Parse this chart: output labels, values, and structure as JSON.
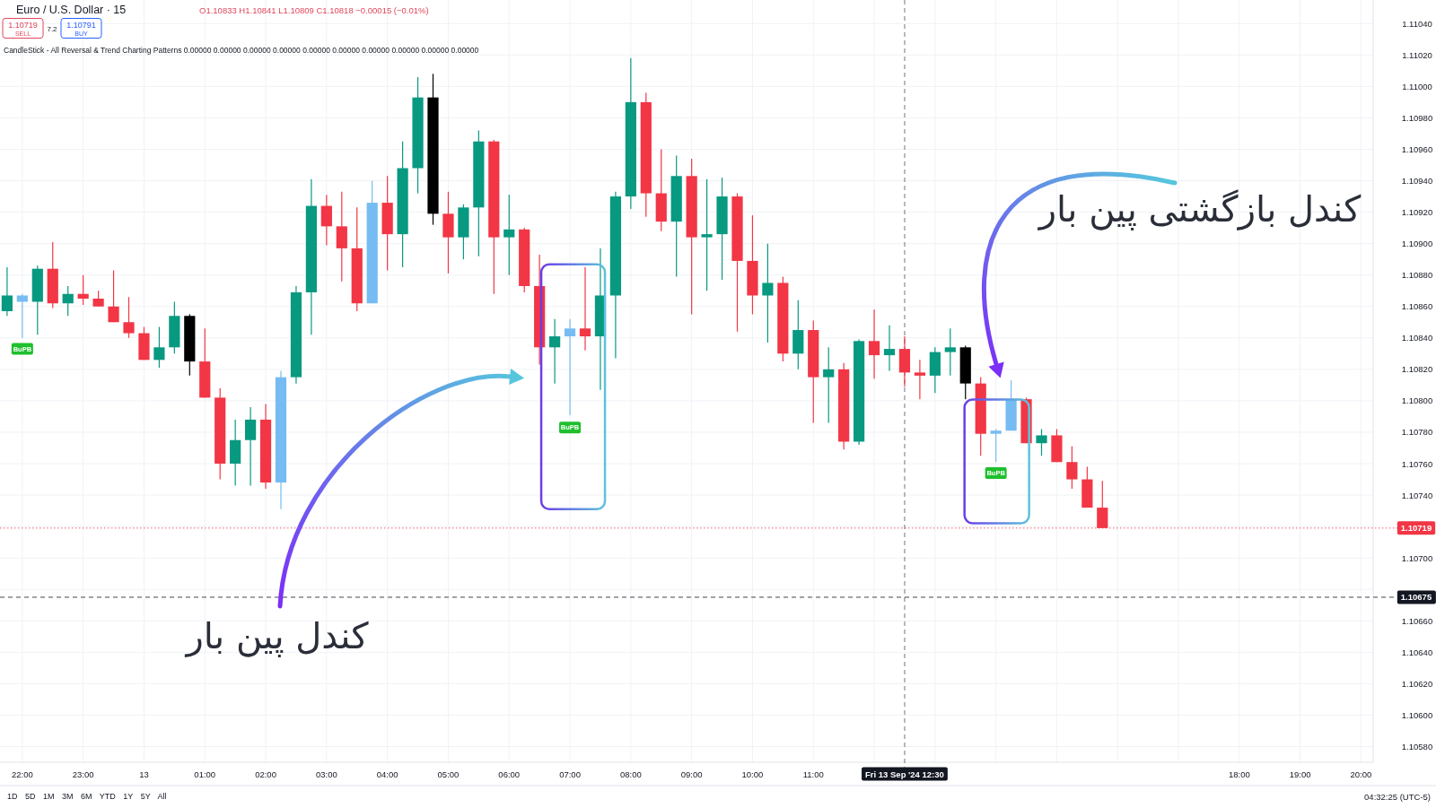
{
  "chart_data": {
    "type": "candlestick",
    "title": "Euro / U.S. Dollar · 15",
    "subtitle": "O1.10833 H1.10841 L1.10809 C1.10818 −0.00015 (−0.01%)",
    "x": [
      "2024-09-12T21:45",
      "2024-09-12T22:00",
      "2024-09-12T22:15",
      "2024-09-12T22:30",
      "2024-09-12T22:45",
      "2024-09-12T23:00",
      "2024-09-12T23:15",
      "2024-09-12T23:30",
      "2024-09-12T23:45",
      "2024-09-13T00:00",
      "2024-09-13T00:15",
      "2024-09-13T00:30",
      "2024-09-13T00:45",
      "2024-09-13T01:00",
      "2024-09-13T01:15",
      "2024-09-13T01:30",
      "2024-09-13T01:45",
      "2024-09-13T02:00",
      "2024-09-13T02:15",
      "2024-09-13T02:30",
      "2024-09-13T02:45",
      "2024-09-13T03:00",
      "2024-09-13T03:15",
      "2024-09-13T03:30",
      "2024-09-13T03:45",
      "2024-09-13T04:00",
      "2024-09-13T04:15",
      "2024-09-13T04:30",
      "2024-09-13T04:45",
      "2024-09-13T05:00",
      "2024-09-13T05:15",
      "2024-09-13T05:30",
      "2024-09-13T05:45",
      "2024-09-13T06:00",
      "2024-09-13T06:15",
      "2024-09-13T06:30",
      "2024-09-13T06:45",
      "2024-09-13T07:00",
      "2024-09-13T07:15",
      "2024-09-13T07:30",
      "2024-09-13T07:45",
      "2024-09-13T08:00",
      "2024-09-13T08:15",
      "2024-09-13T08:30",
      "2024-09-13T08:45",
      "2024-09-13T09:00",
      "2024-09-13T09:15",
      "2024-09-13T09:30",
      "2024-09-13T09:45",
      "2024-09-13T10:00",
      "2024-09-13T10:15",
      "2024-09-13T10:30",
      "2024-09-13T10:45",
      "2024-09-13T11:00",
      "2024-09-13T11:15",
      "2024-09-13T11:30",
      "2024-09-13T11:45",
      "2024-09-13T12:00",
      "2024-09-13T12:15",
      "2024-09-13T12:30",
      "2024-09-13T12:45",
      "2024-09-13T13:00",
      "2024-09-13T13:15",
      "2024-09-13T13:30",
      "2024-09-13T13:45",
      "2024-09-13T14:00",
      "2024-09-13T14:15",
      "2024-09-13T14:30",
      "2024-09-13T14:45",
      "2024-09-13T15:00",
      "2024-09-13T15:15",
      "2024-09-13T15:30",
      "2024-09-13T15:45"
    ],
    "ohlc": [
      [
        1.10857,
        1.10885,
        1.10854,
        1.10867
      ],
      [
        1.10863,
        1.10868,
        1.1084,
        1.10867
      ],
      [
        1.10863,
        1.10886,
        1.10842,
        1.10884
      ],
      [
        1.10884,
        1.10901,
        1.10859,
        1.10862
      ],
      [
        1.10862,
        1.10873,
        1.10854,
        1.10868
      ],
      [
        1.10868,
        1.1088,
        1.10861,
        1.10865
      ],
      [
        1.10865,
        1.1087,
        1.1086,
        1.1086
      ],
      [
        1.1086,
        1.10883,
        1.1085,
        1.1085
      ],
      [
        1.1085,
        1.10866,
        1.1084,
        1.10843
      ],
      [
        1.10843,
        1.10847,
        1.10826,
        1.10826
      ],
      [
        1.10826,
        1.10847,
        1.10821,
        1.10834
      ],
      [
        1.10834,
        1.10863,
        1.1083,
        1.10854
      ],
      [
        1.10854,
        1.10855,
        1.10816,
        1.10825
      ],
      [
        1.10825,
        1.10846,
        1.10802,
        1.10802
      ],
      [
        1.10802,
        1.10808,
        1.1075,
        1.1076
      ],
      [
        1.1076,
        1.10788,
        1.10746,
        1.10775
      ],
      [
        1.10775,
        1.10796,
        1.10746,
        1.10788
      ],
      [
        1.10788,
        1.10798,
        1.10744,
        1.10748
      ],
      [
        1.10748,
        1.10819,
        1.10731,
        1.10815
      ],
      [
        1.10815,
        1.10873,
        1.10811,
        1.10869
      ],
      [
        1.10869,
        1.10941,
        1.10842,
        1.10924
      ],
      [
        1.10924,
        1.10931,
        1.10899,
        1.10911
      ],
      [
        1.10911,
        1.10933,
        1.10876,
        1.10897
      ],
      [
        1.10897,
        1.10923,
        1.10857,
        1.10862
      ],
      [
        1.10862,
        1.1094,
        1.10862,
        1.10926
      ],
      [
        1.10926,
        1.10943,
        1.10883,
        1.10906
      ],
      [
        1.10906,
        1.10965,
        1.10885,
        1.10948
      ],
      [
        1.10948,
        1.11006,
        1.10932,
        1.10993
      ],
      [
        1.10993,
        1.11008,
        1.10912,
        1.10919
      ],
      [
        1.10919,
        1.10933,
        1.10881,
        1.10904
      ],
      [
        1.10904,
        1.10925,
        1.1089,
        1.10923
      ],
      [
        1.10923,
        1.10972,
        1.10892,
        1.10965
      ],
      [
        1.10965,
        1.10966,
        1.10868,
        1.10904
      ],
      [
        1.10904,
        1.10931,
        1.1088,
        1.10909
      ],
      [
        1.10909,
        1.1091,
        1.10869,
        1.10873
      ],
      [
        1.10873,
        1.10893,
        1.10823,
        1.10834
      ],
      [
        1.10834,
        1.10852,
        1.10811,
        1.10841
      ],
      [
        1.10841,
        1.10852,
        1.10791,
        1.10846
      ],
      [
        1.10846,
        1.10885,
        1.10832,
        1.10841
      ],
      [
        1.10841,
        1.10897,
        1.10807,
        1.10867
      ],
      [
        1.10867,
        1.10933,
        1.10827,
        1.1093
      ],
      [
        1.1093,
        1.11018,
        1.10922,
        1.1099
      ],
      [
        1.1099,
        1.10996,
        1.10917,
        1.10932
      ],
      [
        1.10932,
        1.1096,
        1.10908,
        1.10914
      ],
      [
        1.10914,
        1.10956,
        1.10879,
        1.10943
      ],
      [
        1.10943,
        1.10954,
        1.10855,
        1.10904
      ],
      [
        1.10904,
        1.10941,
        1.1087,
        1.10906
      ],
      [
        1.10906,
        1.10942,
        1.10877,
        1.1093
      ],
      [
        1.1093,
        1.10932,
        1.10844,
        1.10889
      ],
      [
        1.10889,
        1.10918,
        1.10855,
        1.10867
      ],
      [
        1.10867,
        1.109,
        1.10837,
        1.10875
      ],
      [
        1.10875,
        1.10879,
        1.10825,
        1.1083
      ],
      [
        1.1083,
        1.10864,
        1.1082,
        1.10845
      ],
      [
        1.10845,
        1.10851,
        1.10786,
        1.10815
      ],
      [
        1.10815,
        1.10834,
        1.10786,
        1.1082
      ],
      [
        1.1082,
        1.10824,
        1.10769,
        1.10774
      ],
      [
        1.10774,
        1.10839,
        1.10772,
        1.10838
      ],
      [
        1.10838,
        1.10858,
        1.10814,
        1.10829
      ],
      [
        1.10829,
        1.10848,
        1.10819,
        1.10833
      ],
      [
        1.10833,
        1.10841,
        1.10809,
        1.10818
      ],
      [
        1.10818,
        1.10826,
        1.10801,
        1.10816
      ],
      [
        1.10816,
        1.10834,
        1.10805,
        1.10831
      ],
      [
        1.10831,
        1.10846,
        1.10816,
        1.10834
      ],
      [
        1.10834,
        1.10835,
        1.10801,
        1.10811
      ],
      [
        1.10811,
        1.10815,
        1.10765,
        1.10779
      ],
      [
        1.10779,
        1.10782,
        1.10761,
        1.10781
      ],
      [
        1.10781,
        1.10813,
        1.10781,
        1.10801
      ],
      [
        1.10801,
        1.10802,
        1.10773,
        1.10773
      ],
      [
        1.10773,
        1.10782,
        1.10765,
        1.10778
      ],
      [
        1.10778,
        1.10782,
        1.10761,
        1.10761
      ],
      [
        1.10761,
        1.10771,
        1.10744,
        1.1075
      ],
      [
        1.1075,
        1.10758,
        1.10732,
        1.10732
      ],
      [
        1.10732,
        1.10749,
        1.10719,
        1.10719
      ]
    ],
    "colors": [
      "#089981",
      "#76bcf2",
      "#089981",
      "#f23645",
      "#089981",
      "#f23645",
      "#f23645",
      "#f23645",
      "#f23645",
      "#f23645",
      "#089981",
      "#089981",
      "#000000",
      "#f23645",
      "#f23645",
      "#089981",
      "#089981",
      "#f23645",
      "#76bcf2",
      "#089981",
      "#089981",
      "#f23645",
      "#f23645",
      "#f23645",
      "#76bcf2",
      "#f23645",
      "#089981",
      "#089981",
      "#000000",
      "#f23645",
      "#089981",
      "#089981",
      "#f23645",
      "#089981",
      "#f23645",
      "#f23645",
      "#089981",
      "#76bcf2",
      "#f23645",
      "#089981",
      "#089981",
      "#089981",
      "#f23645",
      "#f23645",
      "#089981",
      "#f23645",
      "#089981",
      "#089981",
      "#f23645",
      "#f23645",
      "#089981",
      "#f23645",
      "#089981",
      "#f23645",
      "#089981",
      "#f23645",
      "#089981",
      "#f23645",
      "#089981",
      "#f23645",
      "#f23645",
      "#089981",
      "#089981",
      "#000000",
      "#f23645",
      "#76bcf2",
      "#76bcf2",
      "#f23645",
      "#089981",
      "#f23645",
      "#f23645",
      "#f23645",
      "#f23645"
    ],
    "xlim": [
      "2024-09-12T21:38",
      "2024-09-13T20:12"
    ],
    "xticks": [
      {
        "value": "2024-09-12T22:00",
        "label": "22:00"
      },
      {
        "value": "2024-09-12T23:00",
        "label": "23:00"
      },
      {
        "value": "2024-09-13T00:00",
        "label": "13"
      },
      {
        "value": "2024-09-13T01:00",
        "label": "01:00"
      },
      {
        "value": "2024-09-13T02:00",
        "label": "02:00"
      },
      {
        "value": "2024-09-13T03:00",
        "label": "03:00"
      },
      {
        "value": "2024-09-13T04:00",
        "label": "04:00"
      },
      {
        "value": "2024-09-13T05:00",
        "label": "05:00"
      },
      {
        "value": "2024-09-13T06:00",
        "label": "06:00"
      },
      {
        "value": "2024-09-13T07:00",
        "label": "07:00"
      },
      {
        "value": "2024-09-13T08:00",
        "label": "08:00"
      },
      {
        "value": "2024-09-13T09:00",
        "label": "09:00"
      },
      {
        "value": "2024-09-13T10:00",
        "label": "10:00"
      },
      {
        "value": "2024-09-13T11:00",
        "label": "11:00"
      },
      {
        "value": "2024-09-13T12:00",
        "label": null
      },
      {
        "value": "2024-09-13T13:00",
        "label": null
      },
      {
        "value": "2024-09-13T14:00",
        "label": null
      },
      {
        "value": "2024-09-13T15:00",
        "label": null
      },
      {
        "value": "2024-09-13T16:00",
        "label": null
      },
      {
        "value": "2024-09-13T17:00",
        "label": null
      },
      {
        "value": "2024-09-13T18:00",
        "label": "18:00"
      },
      {
        "value": "2024-09-13T19:00",
        "label": "19:00"
      },
      {
        "value": "2024-09-13T20:00",
        "label": "20:00"
      }
    ],
    "ylim": [
      1.1057,
      1.11055
    ],
    "yticks": [
      {
        "value": 1.1104,
        "label": "1.11040"
      },
      {
        "value": 1.1102,
        "label": "1.11020"
      },
      {
        "value": 1.11,
        "label": "1.11000"
      },
      {
        "value": 1.1098,
        "label": "1.10980"
      },
      {
        "value": 1.1096,
        "label": "1.10960"
      },
      {
        "value": 1.1094,
        "label": "1.10940"
      },
      {
        "value": 1.1092,
        "label": "1.10920"
      },
      {
        "value": 1.109,
        "label": "1.10900"
      },
      {
        "value": 1.1088,
        "label": "1.10880"
      },
      {
        "value": 1.1086,
        "label": "1.10860"
      },
      {
        "value": 1.1084,
        "label": "1.10840"
      },
      {
        "value": 1.1082,
        "label": "1.10820"
      },
      {
        "value": 1.108,
        "label": "1.10800"
      },
      {
        "value": 1.1078,
        "label": "1.10780"
      },
      {
        "value": 1.1076,
        "label": "1.10760"
      },
      {
        "value": 1.1074,
        "label": "1.10740"
      },
      {
        "value": 1.1072,
        "label": null
      },
      {
        "value": 1.107,
        "label": "1.10700"
      },
      {
        "value": 1.1068,
        "label": null
      },
      {
        "value": 1.1066,
        "label": "1.10660"
      },
      {
        "value": 1.1064,
        "label": "1.10640"
      },
      {
        "value": 1.1062,
        "label": "1.10620"
      },
      {
        "value": 1.106,
        "label": "1.10600"
      },
      {
        "value": 1.1058,
        "label": "1.10580"
      }
    ],
    "grid": true,
    "ref_lines": [
      {
        "axis": "y",
        "value": 1.10719,
        "label": "1.10719",
        "color": "#f23645",
        "line_style": "dotted"
      },
      {
        "axis": "y",
        "value": 1.10675,
        "label": "1.10675",
        "color": "#131722",
        "line_style": "dashed"
      },
      {
        "axis": "x",
        "value": "2024-09-13T12:30",
        "label": "Fri 13 Sep '24 12:30",
        "color": "#131722",
        "line_style": "dashed"
      }
    ],
    "annotations": [
      "1.10719",
      "SELL",
      "7.2",
      "1.10791",
      "BUY",
      "CandleStick - All Reversal & Trend Charting Patterns 0.00000 0.00000 0.00000 0.00000 0.00000 0.00000 0.00000 0.00000 0.00000 0.00000",
      {
        "text": "BuPB",
        "x": "2024-09-12T22:00",
        "y": 1.10833
      },
      {
        "text": "BuPB",
        "x": "2024-09-13T07:00",
        "y": 1.10783
      },
      {
        "text": "BuPB",
        "x": "2024-09-13T14:00",
        "y": 1.10754
      },
      "کندل پین بار",
      "کندل بازگشتی پین بار",
      "1D 5D 1M 3M 6M YTD 1Y 5Y All",
      "04:32:25 (UTC-5)"
    ]
  }
}
